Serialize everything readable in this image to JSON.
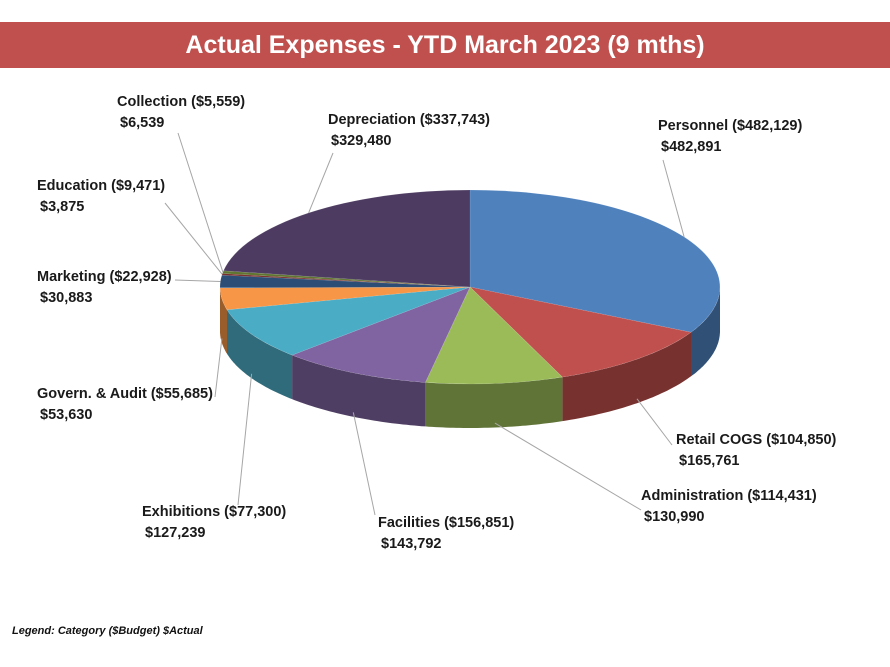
{
  "title": "Actual Expenses - YTD March 2023 (9 mths)",
  "legend_note": "Legend: Category ($Budget) $Actual",
  "chart_data": {
    "type": "pie",
    "title": "Actual Expenses - YTD March 2023 (9 mths)",
    "slices": [
      {
        "name": "Personnel",
        "budget_label": "($482,129)",
        "actual_label": "$482,891",
        "budget": 482129,
        "actual": 482891,
        "color": "#4f81bd"
      },
      {
        "name": "Retail COGS",
        "budget_label": "($104,850)",
        "actual_label": "$165,761",
        "budget": 104850,
        "actual": 165761,
        "color": "#c0504d"
      },
      {
        "name": "Administration",
        "budget_label": "($114,431)",
        "actual_label": "$130,990",
        "budget": 114431,
        "actual": 130990,
        "color": "#9bbb59"
      },
      {
        "name": "Facilities",
        "budget_label": "($156,851)",
        "actual_label": "$143,792",
        "budget": 156851,
        "actual": 143792,
        "color": "#8064a2"
      },
      {
        "name": "Exhibitions",
        "budget_label": "($77,300)",
        "actual_label": "$127,239",
        "budget": 77300,
        "actual": 127239,
        "color": "#4bacc6"
      },
      {
        "name": "Govern. & Audit",
        "budget_label": "($55,685)",
        "actual_label": "$53,630",
        "budget": 55685,
        "actual": 53630,
        "color": "#f79646"
      },
      {
        "name": "Marketing",
        "budget_label": "($22,928)",
        "actual_label": "$30,883",
        "budget": 22928,
        "actual": 30883,
        "color": "#2c4d75"
      },
      {
        "name": "Education",
        "budget_label": "($9,471)",
        "actual_label": "$3,875",
        "budget": 9471,
        "actual": 3875,
        "color": "#772c2a"
      },
      {
        "name": "Collection",
        "budget_label": "($5,559)",
        "actual_label": "$6,539",
        "budget": 5559,
        "actual": 6539,
        "color": "#5f7530"
      },
      {
        "name": "Depreciation",
        "budget_label": "($337,743)",
        "actual_label": "$329,480",
        "budget": 337743,
        "actual": 329480,
        "color": "#4d3b62"
      }
    ]
  }
}
